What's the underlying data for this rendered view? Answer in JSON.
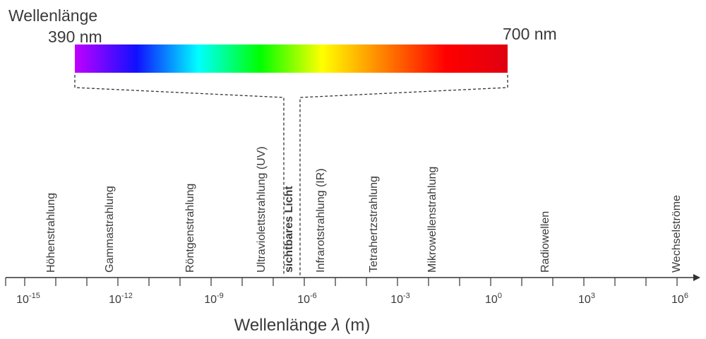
{
  "spectrum": {
    "title": "Wellenlänge",
    "start_label": "390 nm",
    "end_label": "700 nm",
    "colors": [
      "#c000ff",
      "#1010ff",
      "#00ffff",
      "#00ff00",
      "#ffff00",
      "#ff8000",
      "#ff0000",
      "#e00010"
    ]
  },
  "bands": [
    {
      "label": "Höhenstrahlung",
      "bold": false
    },
    {
      "label": "Gammastrahlung",
      "bold": false
    },
    {
      "label": "Röntgenstrahlung",
      "bold": false
    },
    {
      "label": "Ultraviolettstrahlung (UV)",
      "bold": false
    },
    {
      "label": "sichtbares Licht",
      "bold": true
    },
    {
      "label": "Infrarotstrahlung (IR)",
      "bold": false
    },
    {
      "label": "Tetrahertzstrahlung",
      "bold": false
    },
    {
      "label": "Mikrowellenstrahlung",
      "bold": false
    },
    {
      "label": "Radiowellen",
      "bold": false
    },
    {
      "label": "Wechselströme",
      "bold": false
    }
  ],
  "axis": {
    "label_main": "Wellenlänge ",
    "label_symbol": "λ",
    "label_unit": " (m)",
    "tick_base": "10",
    "tick_exponents": [
      "-15",
      "-12",
      "-9",
      "-6",
      "-3",
      "0",
      "3",
      "6"
    ]
  }
}
